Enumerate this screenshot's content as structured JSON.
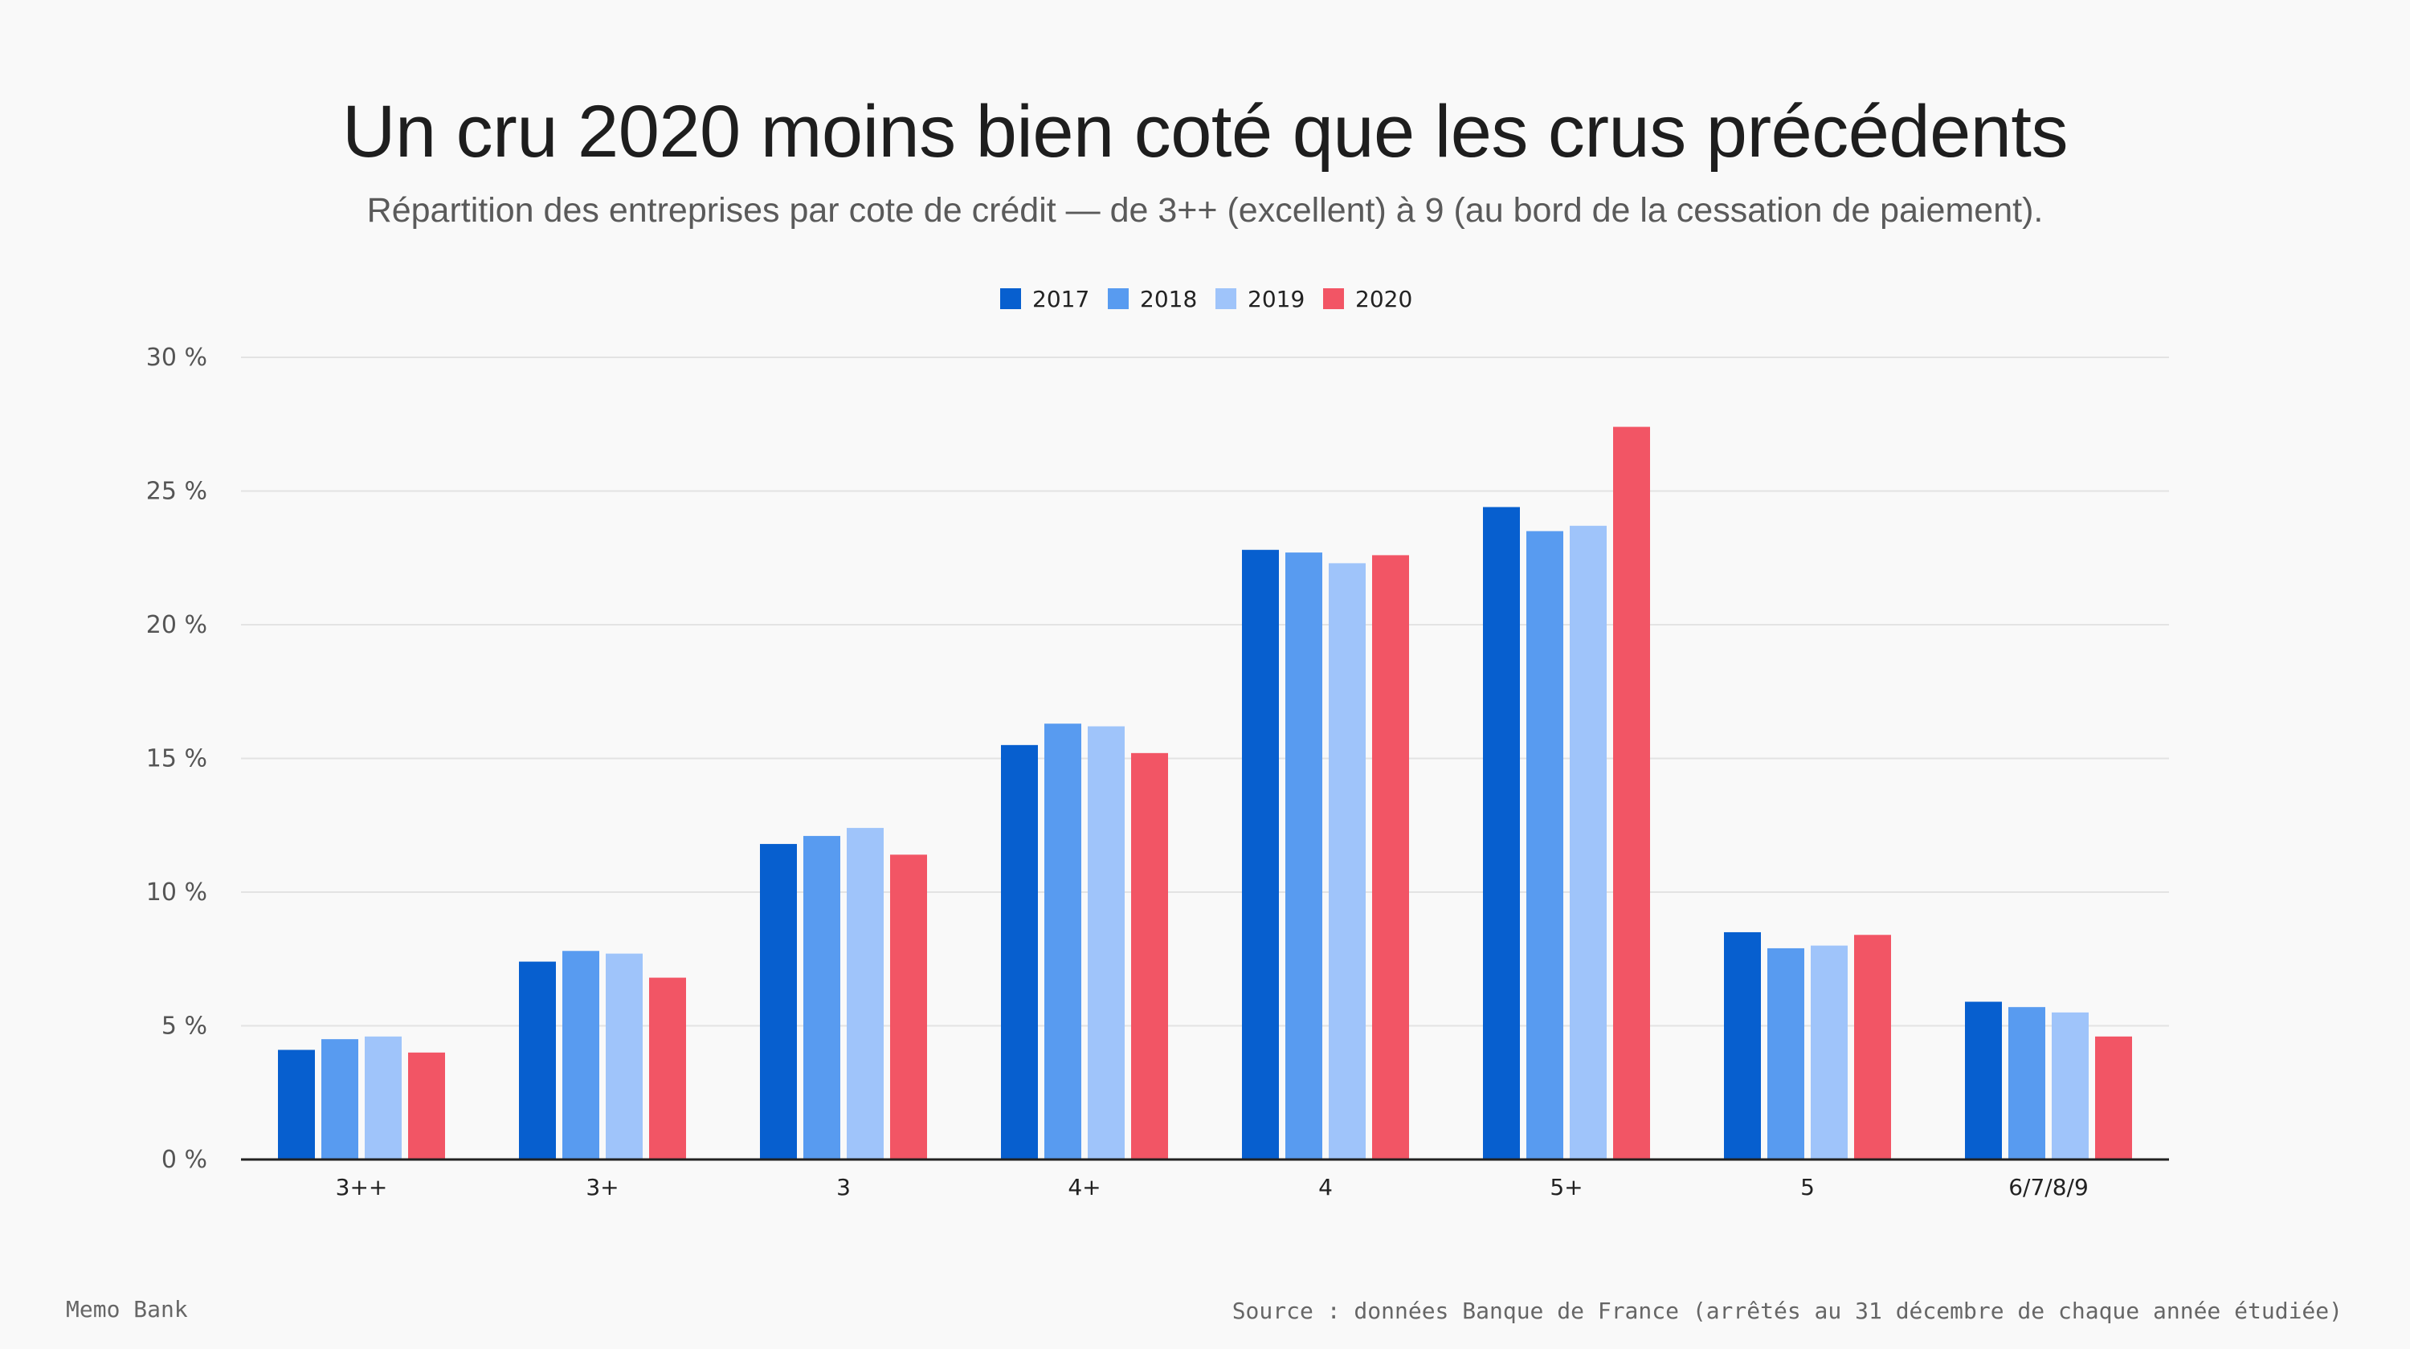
{
  "chart_data": {
    "type": "bar",
    "title": "Un cru 2020 moins bien coté que les crus précédents",
    "subtitle": "Répartition des entreprises par cote de crédit — de 3++ (excellent) à 9 (au bord de la cessation de paiement).",
    "categories": [
      "3++",
      "3+",
      "3",
      "4+",
      "4",
      "5+",
      "5",
      "6/7/8/9"
    ],
    "series": [
      {
        "name": "2017",
        "color": "#075fcf",
        "values": [
          4.1,
          7.4,
          11.8,
          15.5,
          22.8,
          24.4,
          8.5,
          5.9
        ]
      },
      {
        "name": "2018",
        "color": "#589bf0",
        "values": [
          4.5,
          7.8,
          12.1,
          16.3,
          22.7,
          23.5,
          7.9,
          5.7
        ]
      },
      {
        "name": "2019",
        "color": "#9fc4fa",
        "values": [
          4.6,
          7.7,
          12.4,
          16.2,
          22.3,
          23.7,
          8.0,
          5.5
        ]
      },
      {
        "name": "2020",
        "color": "#f25565",
        "values": [
          4.0,
          6.8,
          11.4,
          15.2,
          22.6,
          27.4,
          8.4,
          4.6
        ]
      }
    ],
    "ylim": [
      0,
      30
    ],
    "yticks": [
      0,
      5,
      10,
      15,
      20,
      25,
      30
    ],
    "ytick_labels": [
      "0 %",
      "5 %",
      "10 %",
      "15 %",
      "20 %",
      "25 %",
      "30 %"
    ],
    "xlabel": "",
    "ylabel": "",
    "grid": true,
    "legend_position": "top-center"
  },
  "footer": {
    "brand": "Memo Bank",
    "source": "Source : données Banque de France (arrêtés au 31 décembre de chaque année étudiée)"
  }
}
